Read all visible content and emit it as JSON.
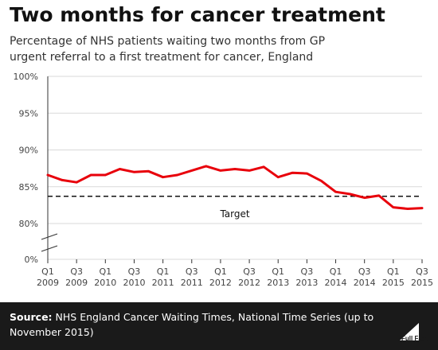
{
  "header": {
    "title": "Two months for cancer treatment",
    "subtitle": "Percentage of NHS patients waiting two months from GP urgent referral to a first treatment for cancer, England"
  },
  "chart_data": {
    "type": "line",
    "y_ticks": [
      "100%",
      "95%",
      "90%",
      "85%",
      "80%",
      "0%"
    ],
    "ylim": [
      80,
      100
    ],
    "y_axis_break": true,
    "categories": [
      "Q1 2009",
      "Q2 2009",
      "Q3 2009",
      "Q4 2009",
      "Q1 2010",
      "Q2 2010",
      "Q3 2010",
      "Q4 2010",
      "Q1 2011",
      "Q2 2011",
      "Q3 2011",
      "Q4 2011",
      "Q1 2012",
      "Q2 2012",
      "Q3 2012",
      "Q4 2012",
      "Q1 2013",
      "Q2 2013",
      "Q3 2013",
      "Q4 2013",
      "Q1 2014",
      "Q2 2014",
      "Q3 2014",
      "Q4 2014",
      "Q1 2015",
      "Q2 2015",
      "Q3 2015"
    ],
    "x_tick_labels": [
      {
        "q": "Q1",
        "year": "2009",
        "index": 0
      },
      {
        "q": "Q3",
        "year": "2009",
        "index": 2
      },
      {
        "q": "Q1",
        "year": "2010",
        "index": 4
      },
      {
        "q": "Q3",
        "year": "2010",
        "index": 6
      },
      {
        "q": "Q1",
        "year": "2011",
        "index": 8
      },
      {
        "q": "Q3",
        "year": "2011",
        "index": 10
      },
      {
        "q": "Q1",
        "year": "2012",
        "index": 12
      },
      {
        "q": "Q3",
        "year": "2012",
        "index": 14
      },
      {
        "q": "Q1",
        "year": "2013",
        "index": 16
      },
      {
        "q": "Q3",
        "year": "2013",
        "index": 18
      },
      {
        "q": "Q1",
        "year": "2014",
        "index": 20
      },
      {
        "q": "Q3",
        "year": "2014",
        "index": 22
      },
      {
        "q": "Q1",
        "year": "2015",
        "index": 24
      },
      {
        "q": "Q3",
        "year": "2015",
        "index": 26
      }
    ],
    "series": [
      {
        "color": "#e8000b",
        "values": [
          86.6,
          85.9,
          85.6,
          86.6,
          86.6,
          87.4,
          87.0,
          87.1,
          86.3,
          86.6,
          87.2,
          87.8,
          87.2,
          87.4,
          87.2,
          87.7,
          86.3,
          86.9,
          86.8,
          85.8,
          84.3,
          84.0,
          83.5,
          83.8,
          82.2,
          82.0,
          82.1
        ]
      }
    ],
    "target": {
      "label": "Target",
      "value": 85,
      "style": "dashed",
      "color": "#111111"
    },
    "grid": true,
    "legend": "none"
  },
  "footer": {
    "source_label": "Source:",
    "source_text": "NHS England Cancer Waiting Times, National Time Series (up to November 2015)",
    "logo_text": "Full Fact"
  }
}
